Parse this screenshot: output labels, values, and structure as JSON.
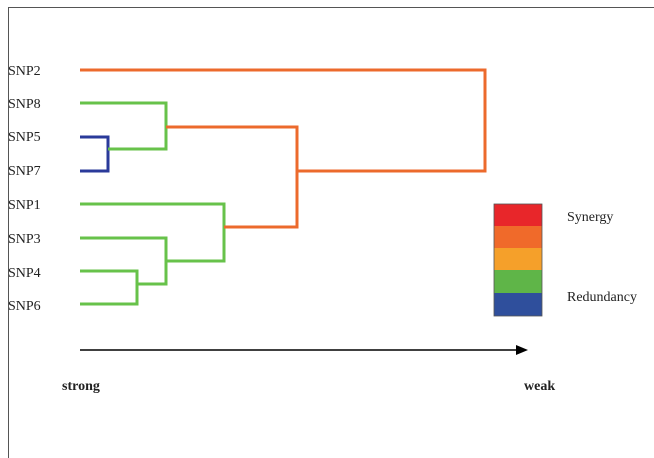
{
  "leaves": [
    "SNP2",
    "SNP8",
    "SNP5",
    "SNP7",
    "SNP1",
    "SNP3",
    "SNP4",
    "SNP6"
  ],
  "legend": {
    "top_label": "Synergy",
    "bottom_label": "Redundancy",
    "swatches": [
      "#e8262a",
      "#f06a2a",
      "#f5a02a",
      "#5fb548",
      "#2f4f9c"
    ]
  },
  "axis": {
    "left_label": "strong",
    "right_label": "weak"
  },
  "colors": {
    "orange": "#ec6a2c",
    "green": "#67c24a",
    "blue": "#2a3a9a",
    "axis": "#000000"
  }
}
